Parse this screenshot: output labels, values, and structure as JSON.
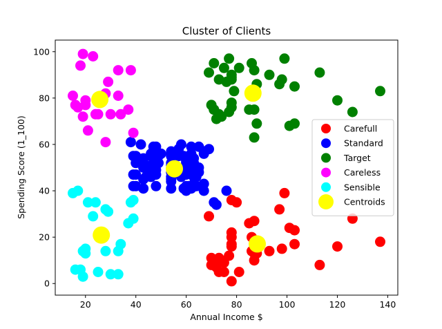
{
  "chart_data": {
    "type": "scatter",
    "title": "Cluster of Clients",
    "xlabel": "Annual Income $",
    "ylabel": "Spending Score (1_100)",
    "xlim": [
      8,
      144
    ],
    "ylim": [
      -5,
      105
    ],
    "xticks": [
      20,
      40,
      60,
      80,
      100,
      120,
      140
    ],
    "yticks": [
      0,
      20,
      40,
      60,
      80,
      100
    ],
    "grid": false,
    "legend_position": "center-right",
    "series": [
      {
        "name": "Carefull",
        "color": "#ff0000",
        "marker": "circle",
        "points": [
          [
            69,
            29
          ],
          [
            70,
            11
          ],
          [
            70,
            8
          ],
          [
            71,
            10
          ],
          [
            71,
            9
          ],
          [
            72,
            7
          ],
          [
            73,
            5
          ],
          [
            73,
            11
          ],
          [
            74,
            10
          ],
          [
            75,
            5
          ],
          [
            75,
            9
          ],
          [
            77,
            12
          ],
          [
            78,
            36
          ],
          [
            78,
            1
          ],
          [
            78,
            22
          ],
          [
            78,
            17
          ],
          [
            78,
            20
          ],
          [
            78,
            16
          ],
          [
            80,
            35
          ],
          [
            81,
            5
          ],
          [
            85,
            26
          ],
          [
            86,
            20
          ],
          [
            86,
            14
          ],
          [
            87,
            27
          ],
          [
            87,
            13
          ],
          [
            87,
            10
          ],
          [
            88,
            15
          ],
          [
            88,
            13
          ],
          [
            93,
            14
          ],
          [
            97,
            32
          ],
          [
            98,
            15
          ],
          [
            99,
            39
          ],
          [
            101,
            24
          ],
          [
            103,
            17
          ],
          [
            103,
            23
          ],
          [
            113,
            8
          ],
          [
            120,
            16
          ],
          [
            126,
            28
          ],
          [
            137,
            18
          ]
        ]
      },
      {
        "name": "Standard",
        "color": "#0000ff",
        "marker": "circle",
        "points": [
          [
            38,
            61
          ],
          [
            39,
            47
          ],
          [
            39,
            42
          ],
          [
            39,
            55
          ],
          [
            40,
            42
          ],
          [
            40,
            52
          ],
          [
            40,
            47
          ],
          [
            40,
            55
          ],
          [
            42,
            52
          ],
          [
            42,
            60
          ],
          [
            43,
            50
          ],
          [
            43,
            45
          ],
          [
            43,
            54
          ],
          [
            43,
            41
          ],
          [
            44,
            46
          ],
          [
            44,
            51
          ],
          [
            46,
            48
          ],
          [
            46,
            46
          ],
          [
            46,
            56
          ],
          [
            46,
            55
          ],
          [
            47,
            52
          ],
          [
            47,
            59
          ],
          [
            48,
            51
          ],
          [
            48,
            47
          ],
          [
            48,
            59
          ],
          [
            48,
            42
          ],
          [
            48,
            49
          ],
          [
            49,
            52
          ],
          [
            49,
            55
          ],
          [
            50,
            56
          ],
          [
            54,
            51
          ],
          [
            54,
            52
          ],
          [
            54,
            56
          ],
          [
            54,
            55
          ],
          [
            54,
            45
          ],
          [
            54,
            48
          ],
          [
            54,
            41
          ],
          [
            54,
            44
          ],
          [
            54,
            57
          ],
          [
            54,
            46
          ],
          [
            54,
            55
          ],
          [
            54,
            50
          ],
          [
            57,
            58
          ],
          [
            57,
            55
          ],
          [
            58,
            60
          ],
          [
            58,
            46
          ],
          [
            59,
            55
          ],
          [
            59,
            41
          ],
          [
            60,
            52
          ],
          [
            60,
            49
          ],
          [
            60,
            40
          ],
          [
            60,
            42
          ],
          [
            60,
            47
          ],
          [
            60,
            50
          ],
          [
            60,
            53
          ],
          [
            61,
            42
          ],
          [
            62,
            41
          ],
          [
            62,
            48
          ],
          [
            62,
            55
          ],
          [
            62,
            59
          ],
          [
            62,
            56
          ],
          [
            62,
            42
          ],
          [
            63,
            50
          ],
          [
            63,
            46
          ],
          [
            63,
            43
          ],
          [
            63,
            48
          ],
          [
            63,
            52
          ],
          [
            63,
            54
          ],
          [
            64,
            42
          ],
          [
            64,
            46
          ],
          [
            65,
            48
          ],
          [
            65,
            50
          ],
          [
            65,
            59
          ],
          [
            67,
            43
          ],
          [
            67,
            57
          ],
          [
            67,
            56
          ],
          [
            67,
            40
          ],
          [
            69,
            58
          ],
          [
            71,
            35
          ],
          [
            72,
            34
          ],
          [
            76,
            40
          ]
        ]
      },
      {
        "name": "Target",
        "color": "#008000",
        "marker": "circle",
        "points": [
          [
            69,
            91
          ],
          [
            70,
            77
          ],
          [
            71,
            95
          ],
          [
            71,
            75
          ],
          [
            71,
            75
          ],
          [
            72,
            71
          ],
          [
            73,
            88
          ],
          [
            73,
            73
          ],
          [
            74,
            72
          ],
          [
            75,
            93
          ],
          [
            76,
            87
          ],
          [
            77,
            97
          ],
          [
            77,
            74
          ],
          [
            78,
            90
          ],
          [
            78,
            88
          ],
          [
            78,
            76
          ],
          [
            78,
            89
          ],
          [
            78,
            78
          ],
          [
            79,
            83
          ],
          [
            81,
            93
          ],
          [
            85,
            75
          ],
          [
            86,
            95
          ],
          [
            87,
            63
          ],
          [
            87,
            75
          ],
          [
            87,
            92
          ],
          [
            88,
            69
          ],
          [
            88,
            86
          ],
          [
            93,
            90
          ],
          [
            97,
            86
          ],
          [
            98,
            88
          ],
          [
            99,
            97
          ],
          [
            101,
            68
          ],
          [
            103,
            85
          ],
          [
            103,
            69
          ],
          [
            113,
            91
          ],
          [
            120,
            79
          ],
          [
            126,
            74
          ],
          [
            137,
            83
          ]
        ]
      },
      {
        "name": "Careless",
        "color": "#ff00ff",
        "marker": "circle",
        "points": [
          [
            15,
            81
          ],
          [
            16,
            77
          ],
          [
            17,
            76
          ],
          [
            18,
            94
          ],
          [
            19,
            72
          ],
          [
            19,
            99
          ],
          [
            20,
            77
          ],
          [
            20,
            79
          ],
          [
            21,
            66
          ],
          [
            23,
            98
          ],
          [
            24,
            73
          ],
          [
            25,
            73
          ],
          [
            28,
            82
          ],
          [
            28,
            61
          ],
          [
            29,
            87
          ],
          [
            30,
            73
          ],
          [
            33,
            92
          ],
          [
            33,
            81
          ],
          [
            34,
            73
          ],
          [
            37,
            75
          ],
          [
            38,
            92
          ],
          [
            39,
            65
          ]
        ]
      },
      {
        "name": "Sensible",
        "color": "#00ffff",
        "marker": "circle",
        "points": [
          [
            15,
            39
          ],
          [
            16,
            6
          ],
          [
            17,
            40
          ],
          [
            18,
            6
          ],
          [
            19,
            3
          ],
          [
            19,
            14
          ],
          [
            20,
            15
          ],
          [
            20,
            13
          ],
          [
            21,
            35
          ],
          [
            23,
            29
          ],
          [
            24,
            35
          ],
          [
            25,
            5
          ],
          [
            28,
            14
          ],
          [
            28,
            32
          ],
          [
            29,
            31
          ],
          [
            30,
            4
          ],
          [
            33,
            4
          ],
          [
            33,
            14
          ],
          [
            34,
            17
          ],
          [
            37,
            26
          ],
          [
            38,
            35
          ],
          [
            39,
            28
          ],
          [
            39,
            36
          ]
        ]
      },
      {
        "name": "Centroids",
        "color": "#ffff00",
        "marker": "circle-large",
        "points": [
          [
            26.3,
            20.9
          ],
          [
            55.3,
            49.5
          ],
          [
            86.5,
            82.1
          ],
          [
            25.7,
            79.4
          ],
          [
            88.2,
            17.1
          ]
        ]
      }
    ]
  }
}
